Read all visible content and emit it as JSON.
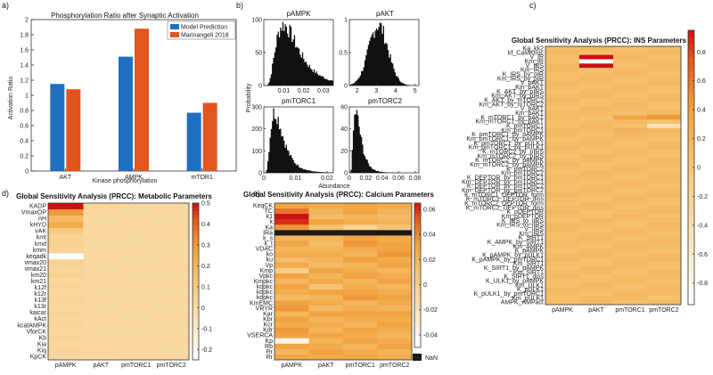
{
  "panels": [
    "a)",
    "b)",
    "c)",
    "d)",
    "e)"
  ],
  "chart_data": [
    {
      "id": "a",
      "type": "bar",
      "title": "Phosphorylation Ratio after Synaptic Activation",
      "xlabel": "Kinase phosphorylation",
      "ylabel": "Activation Ratio",
      "categories": [
        "AKT",
        "AMPK",
        "mTOR1"
      ],
      "series": [
        {
          "name": "Model Prediction",
          "color": "#1f6fc0",
          "values": [
            1.15,
            1.51,
            0.77
          ]
        },
        {
          "name": "Marinangeli 2018",
          "color": "#e0561e",
          "values": [
            1.08,
            1.88,
            0.9
          ]
        }
      ],
      "ylim": [
        0,
        2
      ],
      "yticks": [
        0,
        0.2,
        0.4,
        0.6,
        0.8,
        1,
        1.2,
        1.4,
        1.6,
        1.8,
        2
      ],
      "ytick_labels": [
        "0",
        "0.2",
        "0.4",
        "0.6",
        "0.8",
        "1",
        "1.2",
        "1.4",
        "1.6",
        "1.8",
        "2"
      ],
      "legend": "top-right"
    },
    {
      "id": "b",
      "type": "bar",
      "subtype": "histogram",
      "ylabel": "Probability",
      "xlabel": "Abundance",
      "color": "#111111",
      "panels": [
        {
          "title": "pAMPK",
          "xlim": [
            0,
            0.035
          ],
          "mean": 0.01,
          "sd": 0.0045,
          "skew": true,
          "xticks": [
            0.01,
            0.02,
            0.03
          ],
          "xtick_labels": [
            "0.01",
            "0.02",
            "0.03"
          ],
          "ylim": [
            0,
            100
          ],
          "yticks": [
            0,
            50,
            100
          ],
          "ytick_labels": [
            "0",
            "50",
            "100"
          ]
        },
        {
          "title": "pAKT",
          "xlim": [
            1.6,
            5.2
          ],
          "mean": 3.1,
          "sd": 0.5,
          "skew": false,
          "xticks": [
            2,
            3,
            4,
            5
          ],
          "xtick_labels": [
            "2",
            "3",
            "4",
            "5"
          ],
          "ylim": [
            0,
            1
          ],
          "yticks": [
            0,
            0.5,
            1
          ],
          "ytick_labels": [
            "0",
            "0.5",
            "1"
          ]
        },
        {
          "title": "pmTORC1",
          "xlim": [
            0,
            0.022
          ],
          "mean": 0.0035,
          "sd": 0.002,
          "skew": true,
          "xticks": [
            0,
            0.01,
            0.02
          ],
          "xtick_labels": [
            "0",
            "0.01",
            "0.02"
          ],
          "ylim": [
            0,
            300
          ],
          "yticks": [
            0,
            100,
            200,
            300
          ],
          "ytick_labels": [
            "0",
            "100",
            "200",
            "300"
          ]
        },
        {
          "title": "pmTORC2",
          "xlim": [
            0,
            0.085
          ],
          "mean": 0.008,
          "sd": 0.01,
          "skew": true,
          "xticks": [
            0,
            0.02,
            0.04,
            0.06,
            0.08
          ],
          "xtick_labels": [
            "0",
            "0.02",
            "0.04",
            "0.06",
            "0.08"
          ],
          "ylim": [
            0,
            60
          ],
          "yticks": [
            0,
            20,
            40,
            60
          ],
          "ytick_labels": [
            "0",
            "20",
            "40",
            "60"
          ]
        }
      ]
    },
    {
      "id": "c",
      "type": "heatmap",
      "title": "Global Sensitivity Analysis (PRCC): INS Parameters",
      "columns": [
        "pAMPK",
        "pAKT",
        "pmTORC1",
        "pmTORC2"
      ],
      "rows": [
        "Ka_kk2",
        "kf_CaMKIIoc",
        "V_IR",
        "Km_IR",
        "V_IRS",
        "Km_IRS",
        "K_IRS_by_pIR",
        "Km_IRS_by_pIR",
        "V_pAKT",
        "Km_pAKT",
        "K_AKT_by_pIRS",
        "Km_AKT_by_pIRS",
        "K_AKT_by_mTORC2",
        "Km_AKT_by_mTORC2",
        "V_pAKT",
        "Km_pAKT",
        "K_mTORC1_by_pAKT",
        "Km_mTORC1_by_pAKT",
        "K_pmTORC1",
        "Km_pmTORC1",
        "K_pmTORC1_by_pAMPK",
        "Km_pmTORC1_by_pAMPK",
        "K_pmTORC1_by_pULK1",
        "Km_pmTORC1_by_pULK1",
        "K_mTORC2_by_pIRS",
        "Km_mTORC2_by_pIRS",
        "K_mTORC2_by_pAMPK",
        "Km_mTORC2_by_pAMPK",
        "K_pmTORC2",
        "Km_pmTORC2",
        "K_DEPTOR_by_pmTORC1",
        "Km_DEPTOR_by_pmTORC1",
        "K_DEPTOR_by_pmTORC2",
        "Km_DEPTOR_by_pmTORC2",
        "K_mTORC1_DEPTOR_form",
        "K_mTORC1_DEPTOR_diss",
        "K_mTORC2_DEPTOR_form",
        "K_mTORC2_DEPTOR_diss",
        "K_pDEPTOR",
        "Km_pDEPTOR",
        "K_IRS_to_iIRS",
        "Km_IRS_to_iIRS",
        "V_iIRS",
        "Km_iIRS",
        "K_SIRT1",
        "K_AMPK_by_SIRT1",
        "Km_AMPK",
        "K_pAMPK",
        "K_pAMPK_by_pULK1",
        "K_pAMPK_by_pmTORC1",
        "Km_SIRT1",
        "K_SIRT1_by_pAMPK",
        "Km_SIRT1",
        "K_SIRT1_diss",
        "K_ULK1_by_pAMPK",
        "Km_ULK1",
        "K_pULK1",
        "K_pULK1_by_pmTORC1",
        "Km_pULK1",
        "AMPK_AMPact"
      ],
      "highlights": [
        {
          "row": 2,
          "col": 1,
          "value": 0.95
        },
        {
          "row": 3,
          "col": 1,
          "value": -0.9
        },
        {
          "row": 4,
          "col": 1,
          "value": 0.95
        },
        {
          "row": 16,
          "col": 2,
          "value": 0.35
        },
        {
          "row": 16,
          "col": 3,
          "value": 0.45
        },
        {
          "row": 17,
          "col": 2,
          "value": 0.15
        },
        {
          "row": 18,
          "col": 3,
          "value": -0.45
        },
        {
          "row": 19,
          "col": 2,
          "value": 0.2
        }
      ],
      "clim": [
        -0.95,
        0.95
      ],
      "colorbar_ticks": [
        "0.8",
        "0.6",
        "0.4",
        "0.2",
        "0",
        "-0.2",
        "-0.4",
        "-0.6",
        "-0.8"
      ],
      "colorbar_values": [
        0.8,
        0.6,
        0.4,
        0.2,
        0,
        -0.2,
        -0.4,
        -0.6,
        -0.8
      ]
    },
    {
      "id": "d",
      "type": "heatmap",
      "title": "Global Sensitivity Analysis (PRCC): Metabolic Parameters",
      "columns": [
        "pAMPK",
        "pAKT",
        "pmTORC1",
        "pmTORC2"
      ],
      "rows": [
        "KADP",
        "VmaxOP",
        "nH",
        "kHYD",
        "vAK",
        "kmt",
        "kmd",
        "kmm",
        "keqadk",
        "vmax20",
        "vmax21",
        "km20",
        "km21",
        "k12f",
        "k12r",
        "k13f",
        "k13r",
        "kaicar",
        "kAct",
        "kcatAMPK",
        "VforCK",
        "Kb",
        "Kia",
        "Kiq",
        "KpCK"
      ],
      "values": [
        [
          0.5,
          0.02,
          0.01,
          0.01
        ],
        [
          0.3,
          0.02,
          0.01,
          0.02
        ],
        [
          0.18,
          0.01,
          0.02,
          0.01
        ],
        [
          0.24,
          0.02,
          0.01,
          0.02
        ],
        [
          0.1,
          0.01,
          0.02,
          0.01
        ],
        [
          0.05,
          0.02,
          0.01,
          0.02
        ],
        [
          0.06,
          0.01,
          0.01,
          0.01
        ],
        [
          0.04,
          0.02,
          0.02,
          0.01
        ],
        [
          -0.25,
          0.01,
          0.01,
          0.02
        ],
        [
          0.06,
          0.02,
          0.01,
          0.01
        ],
        [
          0.03,
          0.01,
          0.02,
          0.02
        ],
        [
          0.05,
          0.02,
          0.01,
          0.01
        ],
        [
          0.02,
          0.01,
          0.01,
          0.02
        ],
        [
          0.03,
          0.02,
          0.02,
          0.01
        ],
        [
          0.02,
          0.01,
          0.01,
          0.01
        ],
        [
          0.04,
          0.02,
          0.01,
          0.02
        ],
        [
          0.02,
          0.01,
          0.02,
          0.01
        ],
        [
          0.03,
          0.02,
          0.01,
          0.01
        ],
        [
          0.02,
          0.01,
          0.01,
          0.02
        ],
        [
          0.03,
          0.02,
          0.02,
          0.01
        ],
        [
          0.02,
          0.01,
          0.01,
          0.01
        ],
        [
          0.03,
          0.02,
          0.01,
          0.02
        ],
        [
          0.02,
          0.01,
          0.02,
          0.01
        ],
        [
          0.03,
          0.02,
          0.01,
          0.01
        ],
        [
          0.02,
          0.01,
          0.01,
          0.02
        ]
      ],
      "clim": [
        -0.25,
        0.5
      ],
      "colorbar_ticks": [
        "0.5",
        "0.4",
        "0.3",
        "0.2",
        "0.1",
        "0",
        "-0.1",
        "-0.2"
      ],
      "colorbar_values": [
        0.5,
        0.4,
        0.3,
        0.2,
        0.1,
        0,
        -0.1,
        -0.2
      ]
    },
    {
      "id": "e",
      "type": "heatmap",
      "title": "Global Sensitivity Analysis (PRCC): Calcium Parameters",
      "columns": [
        "pAMPK",
        "pAKT",
        "pmTORC1",
        "pmTORC2"
      ],
      "rows": [
        "KeqCK",
        "TC",
        "k1",
        "k",
        "Ka",
        "IRa",
        "k_s",
        "k_t",
        "VDAC",
        "ko",
        "ku",
        "Vp",
        "Kmp",
        "Vpkc",
        "Kmpkc",
        "kdpkc",
        "kdpkc",
        "kdpkc",
        "KmEMC",
        "VRYR",
        "Kar",
        "Kbr",
        "Kcr",
        "Kdr",
        "VSERCA",
        "Kp",
        "Rb",
        "Rr",
        "Rr"
      ],
      "values": [
        [
          0.03,
          0.025,
          0.03,
          0.025
        ],
        [
          0.045,
          0.02,
          0.03,
          0.02
        ],
        [
          0.065,
          0.015,
          0.02,
          0.015
        ],
        [
          0.06,
          0.03,
          0.025,
          0.02
        ],
        [
          0.035,
          0.01,
          -0.005,
          0.01
        ],
        [
          null,
          null,
          null,
          null
        ],
        [
          0.02,
          0.02,
          0.03,
          0.025
        ],
        [
          0.03,
          0.015,
          0.035,
          0.03
        ],
        [
          0.02,
          0.02,
          0.025,
          0.03
        ],
        [
          0.025,
          0.025,
          0.02,
          0.035
        ],
        [
          0.015,
          0.02,
          0.03,
          0.025
        ],
        [
          0.025,
          0.015,
          0.02,
          0.03
        ],
        [
          0.0,
          0.03,
          0.025,
          0.02
        ],
        [
          0.03,
          0.02,
          0.03,
          0.025
        ],
        [
          0.02,
          0.025,
          0.02,
          0.03
        ],
        [
          0.03,
          0.01,
          0.025,
          0.02
        ],
        [
          0.025,
          0.03,
          0.03,
          0.025
        ],
        [
          0.015,
          0.02,
          0.035,
          0.03
        ],
        [
          0.03,
          0.025,
          0.02,
          0.025
        ],
        [
          0.035,
          0.015,
          0.025,
          0.02
        ],
        [
          0.02,
          0.03,
          0.03,
          0.03
        ],
        [
          0.03,
          0.02,
          0.025,
          0.025
        ],
        [
          0.025,
          0.025,
          0.02,
          0.03
        ],
        [
          0.035,
          0.02,
          0.03,
          0.025
        ],
        [
          0.03,
          0.03,
          0.025,
          0.02
        ],
        [
          -0.04,
          0.02,
          0.03,
          0.025
        ],
        [
          0.03,
          0.025,
          0.02,
          0.03
        ],
        [
          0.02,
          0.03,
          0.025,
          0.02
        ],
        [
          0.03,
          0.025,
          0.03,
          0.025
        ]
      ],
      "clim": [
        -0.05,
        0.065
      ],
      "colorbar_ticks": [
        "0.06",
        "0.04",
        "0.02",
        "0",
        "-0.02",
        "-0.04"
      ],
      "colorbar_values": [
        0.06,
        0.04,
        0.02,
        0,
        -0.02,
        -0.04
      ],
      "nan_label": "NaN"
    }
  ]
}
